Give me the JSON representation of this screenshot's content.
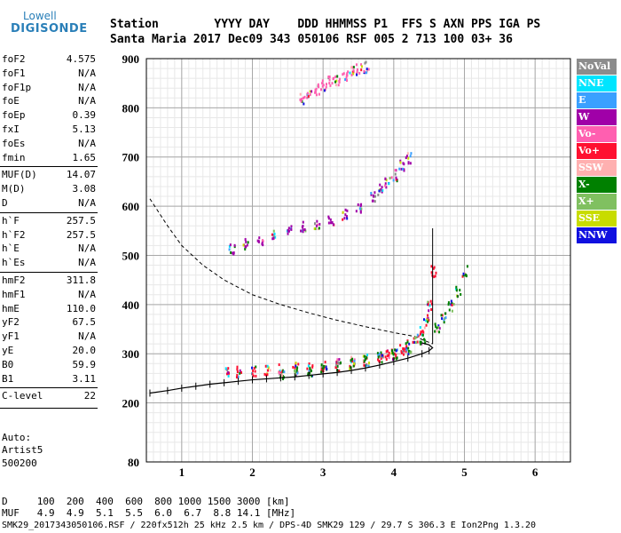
{
  "logo": {
    "line1": "Lowell",
    "line2": "DIGISONDE"
  },
  "header": {
    "row1": "Station        YYYY DAY    DDD HHMMSS P1  FFS S AXN PPS IGA PS",
    "row2": "Santa Maria 2017 Dec09 343 050106 RSF 005 2 713 100 03+ 36"
  },
  "params": [
    {
      "name": "foF2",
      "value": "4.575"
    },
    {
      "name": "foF1",
      "value": "N/A"
    },
    {
      "name": "foF1p",
      "value": "N/A"
    },
    {
      "name": "foE",
      "value": "N/A"
    },
    {
      "name": "foEp",
      "value": "0.39"
    },
    {
      "name": "fxI",
      "value": "5.13"
    },
    {
      "name": "foEs",
      "value": "N/A"
    },
    {
      "name": "fmin",
      "value": "1.65"
    },
    {
      "name": "MUF(D)",
      "value": "14.07"
    },
    {
      "name": "M(D)",
      "value": "3.08"
    },
    {
      "name": "D",
      "value": "N/A"
    },
    {
      "name": "h`F",
      "value": "257.5"
    },
    {
      "name": "h`F2",
      "value": "257.5"
    },
    {
      "name": "h`E",
      "value": "N/A"
    },
    {
      "name": "h`Es",
      "value": "N/A"
    },
    {
      "name": "hmF2",
      "value": "311.8"
    },
    {
      "name": "hmF1",
      "value": "N/A"
    },
    {
      "name": "hmE",
      "value": "110.0"
    },
    {
      "name": "yF2",
      "value": "67.5"
    },
    {
      "name": "yF1",
      "value": "N/A"
    },
    {
      "name": "yE",
      "value": "20.0"
    },
    {
      "name": "B0",
      "value": "59.9"
    },
    {
      "name": "B1",
      "value": "3.11"
    },
    {
      "name": "C-level",
      "value": "22"
    }
  ],
  "autoscaling": {
    "line1": "Auto:",
    "line2": "Artist5",
    "line3": "500200"
  },
  "legend": [
    {
      "label": "NoVal",
      "color": "#8c8c8c"
    },
    {
      "label": "NNE",
      "color": "#00e5ff"
    },
    {
      "label": "E",
      "color": "#3aa0ff"
    },
    {
      "label": "W",
      "color": "#a000a8"
    },
    {
      "label": "Vo-",
      "color": "#ff5fb0"
    },
    {
      "label": "Vo+",
      "color": "#ff1030"
    },
    {
      "label": "SSW",
      "color": "#ffb0b0"
    },
    {
      "label": "X-",
      "color": "#008000"
    },
    {
      "label": "X+",
      "color": "#80c060"
    },
    {
      "label": "SSE",
      "color": "#c8dc00"
    },
    {
      "label": "NNW",
      "color": "#1010e0"
    }
  ],
  "footer": {
    "d_row": "D     100  200  400  600  800 1000 1500 3000 [km]",
    "muf_row": "MUF   4.9  4.9  5.1  5.5  6.0  6.7  8.8 14.1 [MHz]",
    "file_row": "SMK29_2017343050106.RSF / 220fx512h 25 kHz 2.5 km / DPS-4D SMK29 129 / 29.7 S 306.3 E Ion2Png 1.3.20"
  },
  "chart_data": {
    "type": "scatter",
    "xlim": [
      0.5,
      6.5
    ],
    "ylim": [
      80,
      900
    ],
    "x_ticks": [
      1,
      2,
      3,
      4,
      5,
      6
    ],
    "y_ticks": [
      80,
      200,
      300,
      400,
      500,
      600,
      700,
      800,
      900
    ],
    "grid": true,
    "series": [
      {
        "name": "O-trace",
        "color": "#ff1030",
        "x": [
          1.65,
          1.8,
          2.0,
          2.2,
          2.4,
          2.6,
          2.8,
          3.0,
          3.2,
          3.4,
          3.6,
          3.8,
          3.9,
          4.0,
          4.1,
          4.2,
          4.3,
          4.4,
          4.45,
          4.5,
          4.55
        ],
        "y": [
          263,
          265,
          268,
          270,
          272,
          273,
          275,
          278,
          281,
          285,
          290,
          296,
          300,
          304,
          310,
          318,
          330,
          350,
          370,
          400,
          470
        ]
      },
      {
        "name": "X-trace",
        "color": "#008000",
        "x": [
          2.4,
          2.6,
          2.8,
          3.0,
          3.2,
          3.4,
          3.6,
          3.8,
          4.0,
          4.2,
          4.4,
          4.6,
          4.7,
          4.8,
          4.9,
          5.0
        ],
        "y": [
          262,
          265,
          268,
          272,
          276,
          281,
          287,
          294,
          302,
          313,
          330,
          355,
          375,
          400,
          430,
          470
        ]
      },
      {
        "name": "F2 multi-hop",
        "color": "#a000a8",
        "x": [
          1.7,
          1.9,
          2.1,
          2.3,
          2.5,
          2.7,
          2.9,
          3.1,
          3.3,
          3.5,
          3.7,
          3.8,
          3.9,
          4.0,
          4.1,
          4.2
        ],
        "y": [
          515,
          525,
          535,
          545,
          552,
          560,
          565,
          575,
          585,
          600,
          620,
          635,
          650,
          665,
          685,
          700
        ]
      },
      {
        "name": "Upper echoes",
        "color": "#ff5fb0",
        "x": [
          2.7,
          2.8,
          2.9,
          3.0,
          3.1,
          3.2,
          3.3,
          3.4,
          3.5,
          3.6
        ],
        "y": [
          820,
          830,
          840,
          848,
          855,
          860,
          868,
          875,
          880,
          885
        ]
      }
    ],
    "profile": {
      "x": [
        0.55,
        0.8,
        1.0,
        1.2,
        1.4,
        1.6,
        1.8,
        2.0,
        2.2,
        2.4,
        2.6,
        2.8,
        3.0,
        3.2,
        3.4,
        3.6,
        3.8,
        4.0,
        4.2,
        4.4,
        4.5,
        4.55,
        4.5,
        4.4
      ],
      "y": [
        220,
        225,
        230,
        234,
        238,
        241,
        244,
        247,
        249,
        251,
        253,
        256,
        259,
        262,
        266,
        271,
        277,
        284,
        291,
        300,
        306,
        312,
        318,
        322
      ]
    },
    "dashed_curve": {
      "x": [
        0.55,
        0.8,
        1.0,
        1.3,
        1.6,
        2.0,
        2.4,
        2.8,
        3.2,
        3.6,
        4.0,
        4.3,
        4.55
      ],
      "y": [
        615,
        560,
        520,
        480,
        450,
        420,
        400,
        383,
        368,
        355,
        343,
        335,
        320
      ]
    },
    "vertical_line": {
      "x": 4.55,
      "y_from": 320,
      "y_to": 555
    }
  }
}
